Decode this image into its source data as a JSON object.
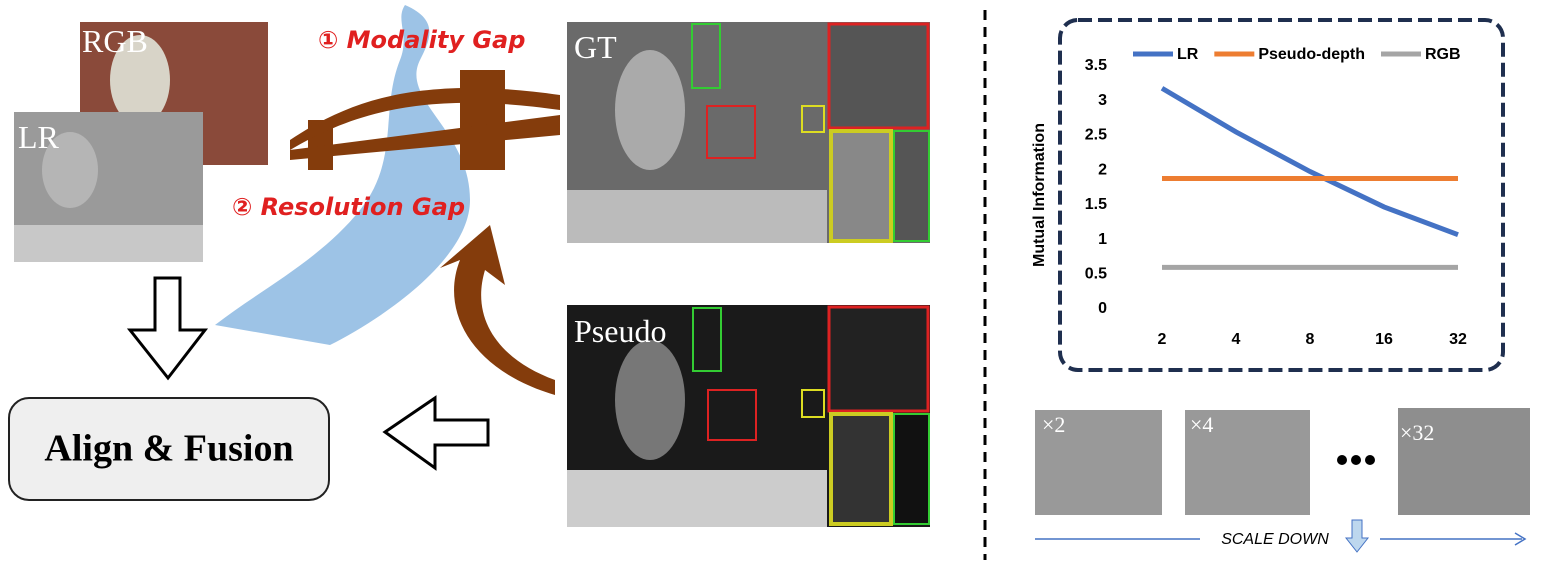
{
  "diagram": {
    "rgb_label": "RGB",
    "lr_label": "LR",
    "modality_gap": "① Modality Gap",
    "resolution_gap": "② Resolution Gap",
    "gt_label": "GT",
    "pseudo_label": "Pseudo",
    "align_fusion": "Align & Fusion",
    "scale_labels": [
      "×2",
      "×4",
      "×32"
    ],
    "scale_down": "SCALE DOWN"
  },
  "chart_data": {
    "type": "line",
    "y_label": "Mutual Information",
    "categories": [
      "2",
      "4",
      "8",
      "16",
      "32"
    ],
    "series": [
      {
        "name": "LR",
        "color": "#4472c4",
        "values": [
          3.18,
          2.55,
          1.98,
          1.47,
          1.07
        ]
      },
      {
        "name": "Pseudo-depth",
        "color": "#ed7d31",
        "values": [
          1.88,
          1.88,
          1.88,
          1.88,
          1.88
        ]
      },
      {
        "name": "RGB",
        "color": "#a5a5a5",
        "values": [
          0.6,
          0.6,
          0.6,
          0.6,
          0.6
        ]
      }
    ],
    "ylim": [
      0,
      3.5
    ],
    "yticks": [
      0,
      0.5,
      1,
      1.5,
      2,
      2.5,
      3,
      3.5
    ],
    "grid": false,
    "legend": "top"
  }
}
